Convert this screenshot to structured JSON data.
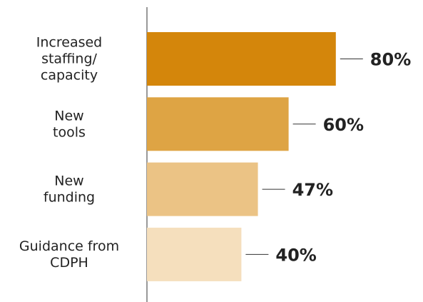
{
  "chart_data": {
    "type": "bar",
    "orientation": "horizontal",
    "categories": [
      "Increased\nstaffing/\ncapacity",
      "New\ntools",
      "New\nfunding",
      "Guidance from\nCDPH"
    ],
    "values": [
      80,
      60,
      47,
      40
    ],
    "value_labels": [
      "80%",
      "60%",
      "47%",
      "40%"
    ],
    "colors": [
      "#d4860b",
      "#dea444",
      "#ebc385",
      "#f5dfbd"
    ]
  }
}
